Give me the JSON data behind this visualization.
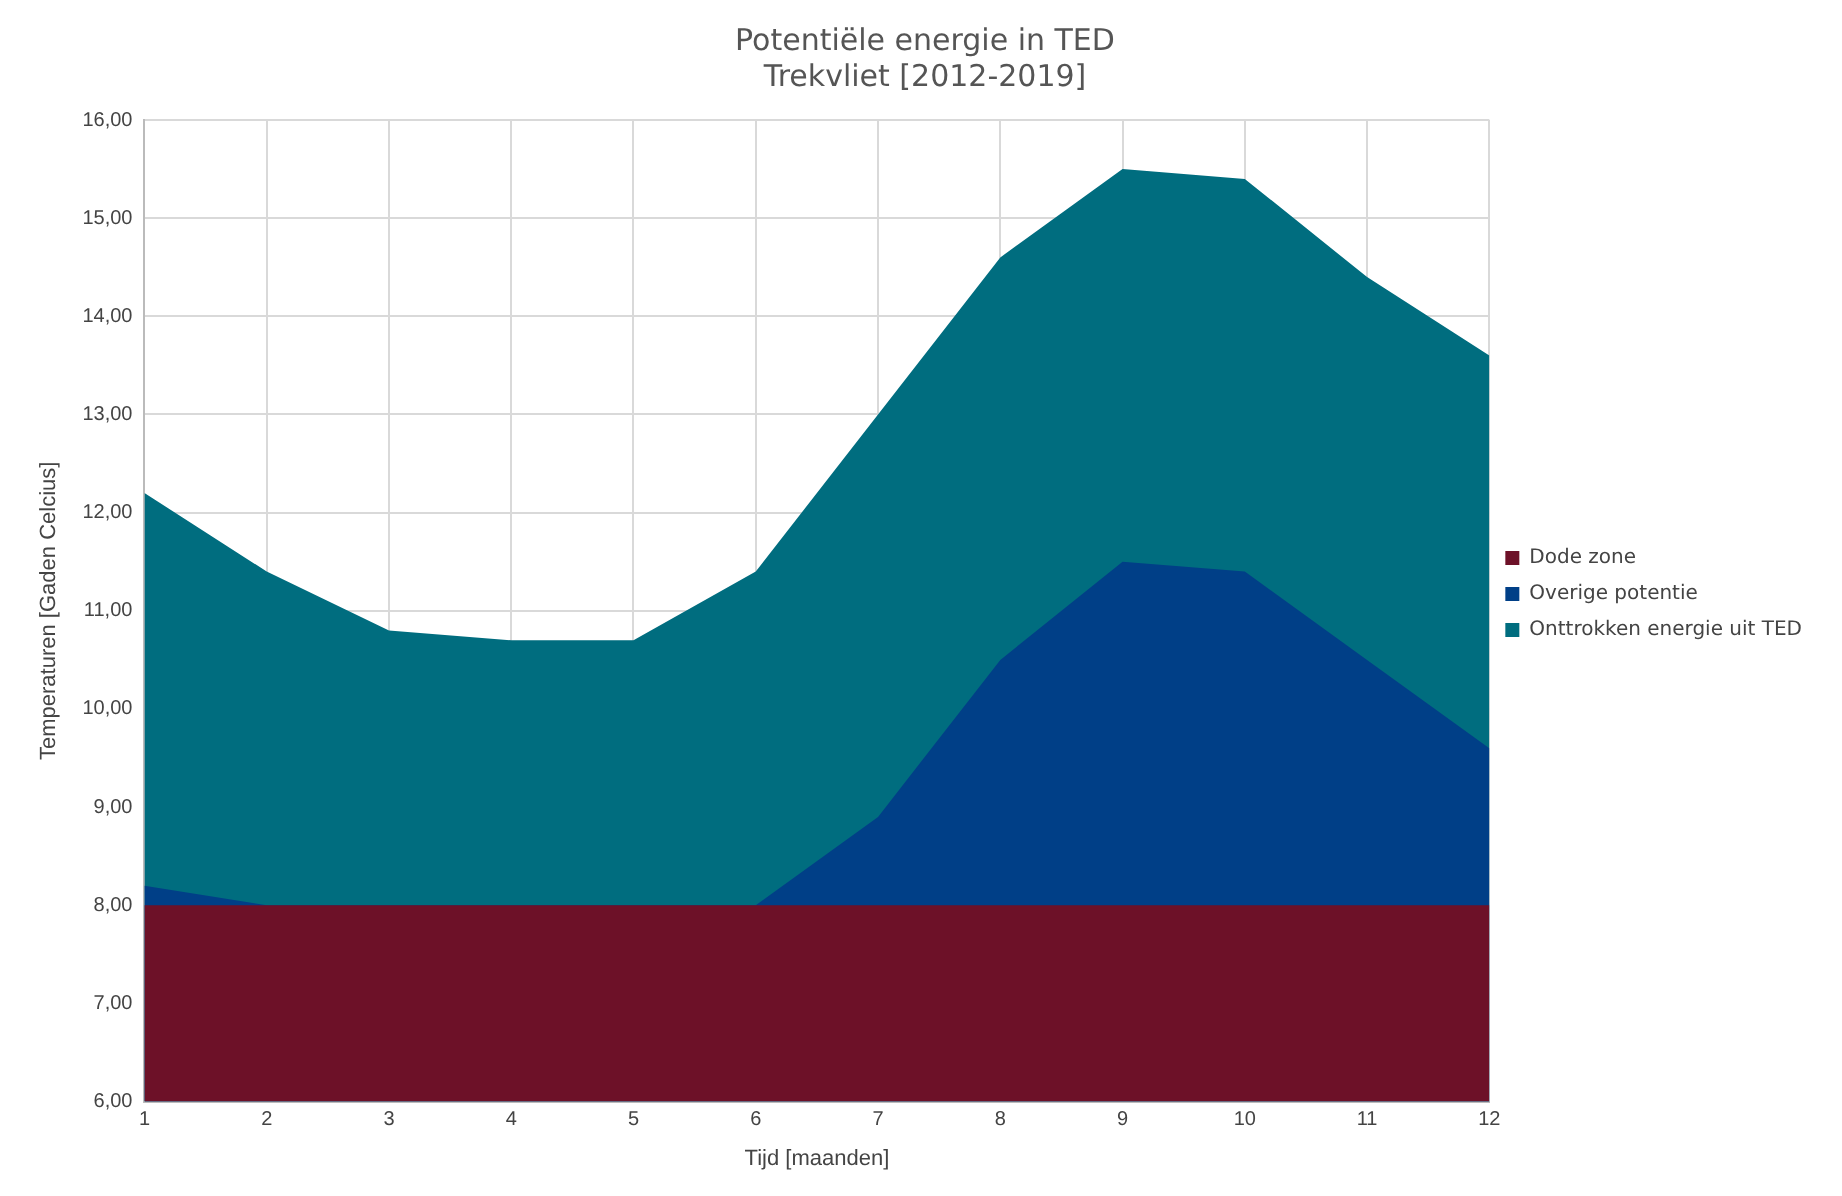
{
  "chart_data": {
    "type": "area",
    "title": "Potentiële energie in TED",
    "subtitle": "Trekvliet [2012-2019]",
    "xlabel": "Tijd [maanden]",
    "ylabel": "Temperaturen [Gaden Celcius]",
    "x": [
      1,
      2,
      3,
      4,
      5,
      6,
      7,
      8,
      9,
      10,
      11,
      12
    ],
    "xlim": [
      1,
      12
    ],
    "xticks": [
      1,
      2,
      3,
      4,
      5,
      6,
      7,
      8,
      9,
      10,
      11,
      12
    ],
    "ylim": [
      6,
      16
    ],
    "yticks": [
      {
        "value": 6,
        "label": "6,00"
      },
      {
        "value": 7,
        "label": "7,00"
      },
      {
        "value": 8,
        "label": "8,00"
      },
      {
        "value": 9,
        "label": "9,00"
      },
      {
        "value": 10,
        "label": "10,00"
      },
      {
        "value": 11,
        "label": "11,00"
      },
      {
        "value": 12,
        "label": "12,00"
      },
      {
        "value": 13,
        "label": "13,00"
      },
      {
        "value": 14,
        "label": "14,00"
      },
      {
        "value": 15,
        "label": "15,00"
      },
      {
        "value": 16,
        "label": "16,00"
      }
    ],
    "series": [
      {
        "name": "Onttrokken energie uit TED",
        "color": "#006d7f",
        "values": [
          12.2,
          11.4,
          10.8,
          10.7,
          10.7,
          11.4,
          13.0,
          14.6,
          15.5,
          15.4,
          14.4,
          13.6
        ]
      },
      {
        "name": "Overige potentie",
        "color": "#003f87",
        "values": [
          8.2,
          8.0,
          8.0,
          8.0,
          8.0,
          8.0,
          8.9,
          10.5,
          11.5,
          11.4,
          10.5,
          9.6
        ]
      },
      {
        "name": "Dode zone",
        "color": "#6d1128",
        "values": [
          8.0,
          8.0,
          8.0,
          8.0,
          8.0,
          8.0,
          8.0,
          8.0,
          8.0,
          8.0,
          8.0,
          8.0
        ]
      }
    ],
    "grid": true,
    "legend": "right",
    "marker": "none"
  }
}
